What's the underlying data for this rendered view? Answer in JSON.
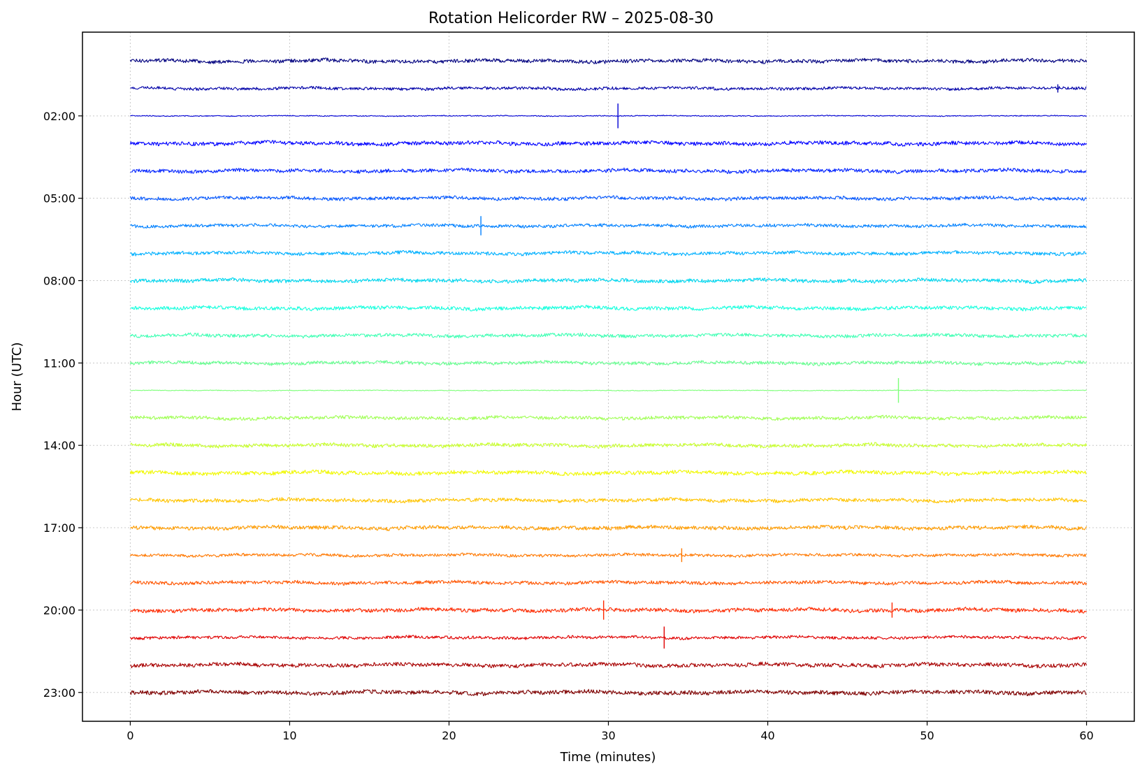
{
  "chart_data": {
    "type": "line",
    "title": "Rotation Helicorder RW – 2025-08-30",
    "xlabel": "Time (minutes)",
    "ylabel": "Hour (UTC)",
    "xlim": [
      -3,
      63
    ],
    "xticks": [
      0,
      10,
      20,
      30,
      40,
      50,
      60
    ],
    "xtick_labels": [
      "0",
      "10",
      "20",
      "30",
      "40",
      "50",
      "60"
    ],
    "yticks": [
      2,
      5,
      8,
      11,
      14,
      17,
      20,
      23
    ],
    "ytick_labels": [
      "02:00",
      "05:00",
      "08:00",
      "11:00",
      "14:00",
      "17:00",
      "20:00",
      "23:00"
    ],
    "ylim": [
      24.05,
      -1.05
    ],
    "grid": true,
    "legend": "none",
    "colormap": "jet",
    "series": [
      {
        "hour": 0,
        "color": "#00007f",
        "amplitude": 0.16,
        "events": []
      },
      {
        "hour": 1,
        "color": "#0000a8",
        "amplitude": 0.13,
        "events": [
          {
            "minute": 58.2,
            "height": 0.3
          }
        ]
      },
      {
        "hour": 2,
        "color": "#0000d4",
        "amplitude": 0.04,
        "events": [
          {
            "minute": 30.6,
            "height": 0.9
          }
        ]
      },
      {
        "hour": 3,
        "color": "#0000ff",
        "amplitude": 0.17,
        "events": []
      },
      {
        "hour": 4,
        "color": "#0022ff",
        "amplitude": 0.16,
        "events": []
      },
      {
        "hour": 5,
        "color": "#0055ff",
        "amplitude": 0.15,
        "events": []
      },
      {
        "hour": 6,
        "color": "#0080ff",
        "amplitude": 0.14,
        "events": [
          {
            "minute": 22.0,
            "height": 0.7
          }
        ]
      },
      {
        "hour": 7,
        "color": "#00b0ff",
        "amplitude": 0.15,
        "events": []
      },
      {
        "hour": 8,
        "color": "#00d8f0",
        "amplitude": 0.16,
        "events": []
      },
      {
        "hour": 9,
        "color": "#18ffde",
        "amplitude": 0.16,
        "events": []
      },
      {
        "hour": 10,
        "color": "#40ffb4",
        "amplitude": 0.15,
        "events": []
      },
      {
        "hour": 11,
        "color": "#66ff90",
        "amplitude": 0.15,
        "events": []
      },
      {
        "hour": 12,
        "color": "#7dff79",
        "amplitude": 0.03,
        "events": [
          {
            "minute": 48.2,
            "height": 0.9
          }
        ]
      },
      {
        "hour": 13,
        "color": "#a0ff56",
        "amplitude": 0.15,
        "events": []
      },
      {
        "hour": 14,
        "color": "#c8ff2e",
        "amplitude": 0.16,
        "events": []
      },
      {
        "hour": 15,
        "color": "#f0f800",
        "amplitude": 0.17,
        "events": []
      },
      {
        "hour": 16,
        "color": "#ffc400",
        "amplitude": 0.16,
        "events": []
      },
      {
        "hour": 17,
        "color": "#ff9c00",
        "amplitude": 0.17,
        "events": []
      },
      {
        "hour": 18,
        "color": "#ff7800",
        "amplitude": 0.13,
        "events": [
          {
            "minute": 34.6,
            "height": 0.5
          }
        ]
      },
      {
        "hour": 19,
        "color": "#ff5500",
        "amplitude": 0.15,
        "events": []
      },
      {
        "hour": 20,
        "color": "#ff2a00",
        "amplitude": 0.17,
        "events": [
          {
            "minute": 29.7,
            "height": 0.7
          },
          {
            "minute": 47.8,
            "height": 0.55
          }
        ]
      },
      {
        "hour": 21,
        "color": "#e00000",
        "amplitude": 0.13,
        "events": [
          {
            "minute": 33.5,
            "height": 0.8
          }
        ]
      },
      {
        "hour": 22,
        "color": "#a80000",
        "amplitude": 0.17,
        "events": []
      },
      {
        "hour": 23,
        "color": "#7f0000",
        "amplitude": 0.18,
        "events": []
      }
    ]
  }
}
